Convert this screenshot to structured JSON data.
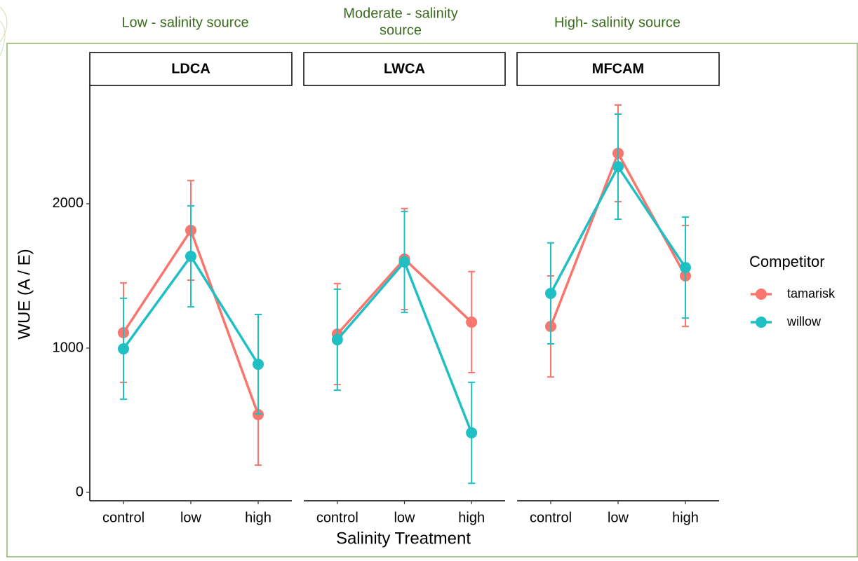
{
  "chart_data": {
    "type": "line",
    "annotations": [
      [
        "Low - salinity source"
      ],
      [
        "Moderate - salinity",
        "source"
      ],
      [
        "High- salinity source"
      ]
    ],
    "facets": [
      "LDCA",
      "LWCA",
      "MFCAM"
    ],
    "categories": [
      "control",
      "low",
      "high"
    ],
    "xlabel": "Salinity Treatment",
    "ylabel": "WUE (A / E)",
    "legend_title": "Competitor",
    "ylim": [
      -58,
      2820
    ],
    "yticks": [
      0,
      1000,
      2000
    ],
    "series": [
      {
        "name": "tamarisk",
        "color": "#f8766d",
        "values": [
          [
            1107,
            1816,
            539
          ],
          [
            1097,
            1617,
            1180
          ],
          [
            1150,
            2350,
            1500
          ]
        ],
        "errors": [
          [
            345,
            345,
            350
          ],
          [
            350,
            350,
            350
          ],
          [
            350,
            335,
            350
          ]
        ]
      },
      {
        "name": "willow",
        "color": "#1fbfc4",
        "values": [
          [
            995,
            1636,
            888
          ],
          [
            1058,
            1597,
            413
          ],
          [
            1379,
            2257,
            1558
          ]
        ],
        "errors": [
          [
            350,
            350,
            345
          ],
          [
            350,
            350,
            350
          ],
          [
            350,
            364,
            350
          ]
        ]
      }
    ]
  }
}
